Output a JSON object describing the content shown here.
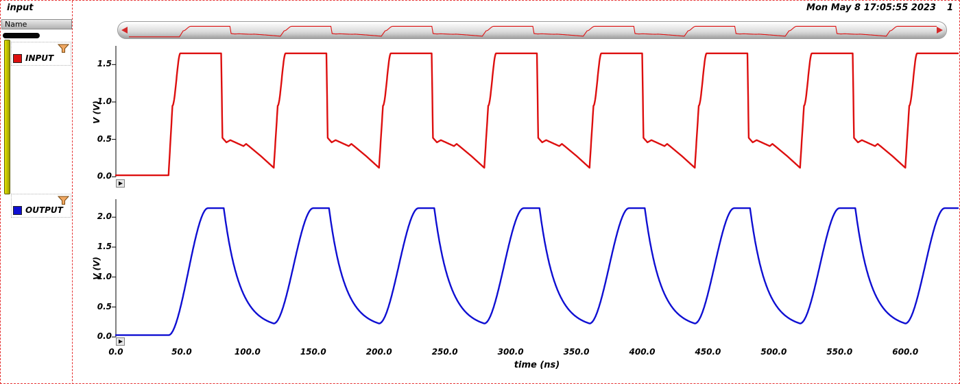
{
  "window": {
    "title": "input",
    "timestamp": "Mon May 8 17:05:55 2023",
    "page": "1"
  },
  "sidebar": {
    "header": "Name",
    "signals": [
      {
        "label": "INPUT",
        "color": "#dd0f0f"
      },
      {
        "label": "OUTPUT",
        "color": "#0f0fd2"
      }
    ]
  },
  "xaxis": {
    "ticks": [
      "0.0",
      "50.0",
      "100.0",
      "150.0",
      "200.0",
      "250.0",
      "300.0",
      "350.0",
      "400.0",
      "450.0",
      "500.0",
      "550.0",
      "600.0"
    ],
    "label": "time (ns)"
  },
  "chart_data": [
    {
      "type": "line",
      "title": "INPUT",
      "color": "#dd0f0f",
      "ylabel": "V (V)",
      "ylim": [
        -0.08,
        1.75
      ],
      "yticks": [
        "0.0",
        "0.5",
        "1.0",
        "1.5"
      ],
      "xlim": [
        0,
        640
      ],
      "waveform": {
        "pre_value": 0.02,
        "first_edge_ns": 40,
        "period_ns": 80,
        "cycles": 8,
        "high_v": 1.65,
        "segments": [
          {
            "dt0": 0,
            "dt1": 3,
            "kind": "linear",
            "v0": null,
            "v1": 0.95
          },
          {
            "dt0": 3,
            "dt1": 9,
            "kind": "smooth",
            "v0": 0.95,
            "v1": 1.65
          },
          {
            "dt0": 9,
            "dt1": 40,
            "kind": "flat",
            "v0": 1.65,
            "v1": 1.65
          },
          {
            "dt0": 40,
            "dt1": 41,
            "kind": "linear",
            "v0": 1.65,
            "v1": 0.52
          },
          {
            "dt0": 41,
            "dt1": 44,
            "kind": "linear",
            "v0": 0.52,
            "v1": 0.46
          },
          {
            "dt0": 44,
            "dt1": 47,
            "kind": "linear",
            "v0": 0.46,
            "v1": 0.49
          },
          {
            "dt0": 47,
            "dt1": 57,
            "kind": "linear",
            "v0": 0.49,
            "v1": 0.41
          },
          {
            "dt0": 57,
            "dt1": 59,
            "kind": "linear",
            "v0": 0.41,
            "v1": 0.44
          },
          {
            "dt0": 59,
            "dt1": 70,
            "kind": "linear",
            "v0": 0.44,
            "v1": 0.28
          },
          {
            "dt0": 70,
            "dt1": 80,
            "kind": "linear",
            "v0": 0.28,
            "v1": 0.12
          }
        ]
      }
    },
    {
      "type": "line",
      "title": "OUTPUT",
      "color": "#0f0fd2",
      "ylabel": "V (V)",
      "ylim": [
        -0.1,
        2.3
      ],
      "yticks": [
        "0.0",
        "0.5",
        "1.0",
        "1.5",
        "2.0"
      ],
      "xlim": [
        0,
        640
      ],
      "waveform": {
        "pre_value": 0.03,
        "first_edge_ns": 40,
        "period_ns": 80,
        "cycles": 8,
        "high_v": 2.15,
        "segments": [
          {
            "dt0": 0,
            "dt1": 30,
            "kind": "smooth",
            "v0": null,
            "v1": 2.15
          },
          {
            "dt0": 30,
            "dt1": 42,
            "kind": "flat",
            "v0": 2.15,
            "v1": 2.15
          },
          {
            "dt0": 42,
            "dt1": 80,
            "kind": "exp",
            "v0": 2.15,
            "v1": 0.14,
            "tau": 12
          }
        ]
      }
    }
  ]
}
